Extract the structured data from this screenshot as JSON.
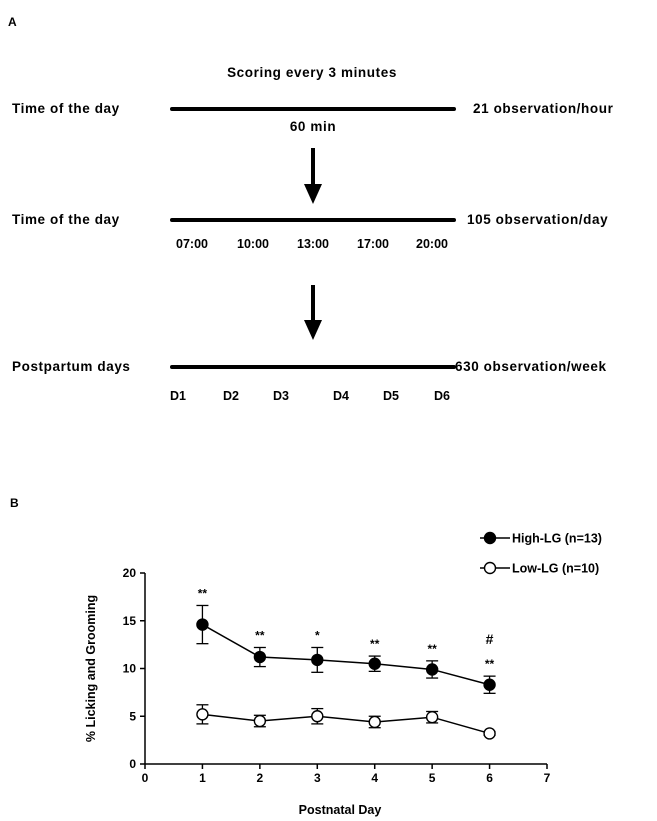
{
  "panel_a": {
    "letter": "A",
    "header": "Scoring every 3 minutes",
    "rows": [
      {
        "left_label": "Time of the day",
        "right_label": "21 observation/hour",
        "sub_label": "60 min"
      },
      {
        "left_label": "Time of the day",
        "right_label": "105 observation/day",
        "ticks": [
          "07:00",
          "10:00",
          "13:00",
          "17:00",
          "20:00"
        ]
      },
      {
        "left_label": "Postpartum days",
        "right_label": "630 observation/week",
        "ticks": [
          "D1",
          "D2",
          "D3",
          "D4",
          "D5",
          "D6"
        ]
      }
    ]
  },
  "panel_b": {
    "letter": "B"
  },
  "chart_data": {
    "type": "line",
    "xlabel": "Postnatal Day",
    "ylabel": "% Licking and Grooming",
    "xlim": [
      0,
      7
    ],
    "ylim": [
      0,
      20
    ],
    "xticks": [
      0,
      1,
      2,
      3,
      4,
      5,
      6,
      7
    ],
    "yticks": [
      0,
      5,
      10,
      15,
      20
    ],
    "grid": false,
    "legend_position": "top-right",
    "x": [
      1,
      2,
      3,
      4,
      5,
      6
    ],
    "series": [
      {
        "name": "High-LG (n=13)",
        "marker": "filled-circle",
        "color": "#000000",
        "values": [
          14.6,
          11.2,
          10.9,
          10.5,
          9.9,
          8.3
        ],
        "errors": [
          2.0,
          1.0,
          1.3,
          0.8,
          0.9,
          0.9
        ]
      },
      {
        "name": "Low-LG (n=10)",
        "marker": "open-circle",
        "color": "#000000",
        "values": [
          5.2,
          4.5,
          5.0,
          4.4,
          4.9,
          3.2
        ],
        "errors": [
          1.0,
          0.6,
          0.8,
          0.6,
          0.6,
          0.2
        ]
      }
    ],
    "annotations": [
      {
        "x": 1,
        "text": "**"
      },
      {
        "x": 2,
        "text": "**"
      },
      {
        "x": 3,
        "text": "*"
      },
      {
        "x": 4,
        "text": "**"
      },
      {
        "x": 5,
        "text": "**"
      },
      {
        "x": 6,
        "text": "**"
      },
      {
        "x": 6,
        "text": "#"
      }
    ]
  }
}
